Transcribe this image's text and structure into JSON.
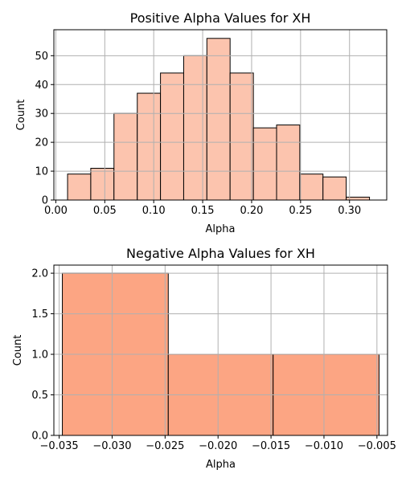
{
  "chart_data": [
    {
      "type": "bar",
      "title": "Positive Alpha Values for XH",
      "xlabel": "Alpha",
      "ylabel": "Count",
      "xlim": [
        -0.002,
        0.338
      ],
      "ylim": [
        0,
        59
      ],
      "xticks": [
        0.0,
        0.05,
        0.1,
        0.15,
        0.2,
        0.25,
        0.3
      ],
      "xtick_labels": [
        "0.00",
        "0.05",
        "0.10",
        "0.15",
        "0.20",
        "0.25",
        "0.30"
      ],
      "yticks": [
        0,
        10,
        20,
        30,
        40,
        50
      ],
      "ytick_labels": [
        "0",
        "10",
        "20",
        "30",
        "40",
        "50"
      ],
      "grid": true,
      "bar_color": "#fcc4ae",
      "bins": [
        {
          "x0": 0.012,
          "x1": 0.0357,
          "value": 9
        },
        {
          "x0": 0.0357,
          "x1": 0.0594,
          "value": 11
        },
        {
          "x0": 0.0594,
          "x1": 0.0832,
          "value": 30
        },
        {
          "x0": 0.0832,
          "x1": 0.1069,
          "value": 37
        },
        {
          "x0": 0.1069,
          "x1": 0.1306,
          "value": 44
        },
        {
          "x0": 0.1306,
          "x1": 0.1543,
          "value": 50
        },
        {
          "x0": 0.1543,
          "x1": 0.178,
          "value": 56
        },
        {
          "x0": 0.178,
          "x1": 0.2018,
          "value": 44
        },
        {
          "x0": 0.2018,
          "x1": 0.2255,
          "value": 25
        },
        {
          "x0": 0.2255,
          "x1": 0.2492,
          "value": 26
        },
        {
          "x0": 0.2492,
          "x1": 0.2729,
          "value": 9
        },
        {
          "x0": 0.2729,
          "x1": 0.2966,
          "value": 8
        },
        {
          "x0": 0.2966,
          "x1": 0.3204,
          "value": 1
        }
      ]
    },
    {
      "type": "bar",
      "title": "Negative Alpha Values for XH",
      "xlabel": "Alpha",
      "ylabel": "Count",
      "xlim": [
        -0.0355,
        -0.004
      ],
      "ylim": [
        0,
        2.1
      ],
      "xticks": [
        -0.035,
        -0.03,
        -0.025,
        -0.02,
        -0.015,
        -0.01,
        -0.005
      ],
      "xtick_labels": [
        "−0.035",
        "−0.030",
        "−0.025",
        "−0.020",
        "−0.015",
        "−0.010",
        "−0.005"
      ],
      "yticks": [
        0.0,
        0.5,
        1.0,
        1.5,
        2.0
      ],
      "ytick_labels": [
        "0.0",
        "0.5",
        "1.0",
        "1.5",
        "2.0"
      ],
      "grid": true,
      "bar_color": "#fca583",
      "bins": [
        {
          "x0": -0.0347,
          "x1": -0.0247,
          "value": 2
        },
        {
          "x0": -0.0247,
          "x1": -0.0148,
          "value": 1
        },
        {
          "x0": -0.0148,
          "x1": -0.0048,
          "value": 1
        }
      ]
    }
  ]
}
